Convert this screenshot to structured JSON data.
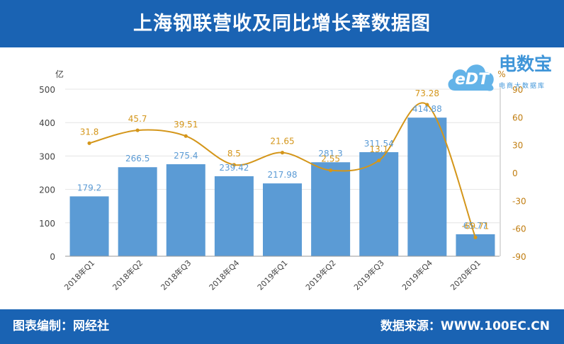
{
  "header": {
    "title": "上海钢联营收及同比增长率数据图"
  },
  "footer": {
    "left": "图表编制：网经社",
    "right": "数据来源：WWW.100EC.CN"
  },
  "logo": {
    "main": "电数宝",
    "sub": "电商大数据库",
    "mark": "eDT"
  },
  "colors": {
    "bar": "#5b9bd5",
    "line": "#d4961a",
    "header": "#1a63b3",
    "bar_label": "#5b9bd5",
    "line_label": "#d4961a"
  },
  "chart_data": {
    "type": "bar+line",
    "categories": [
      "2018年Q1",
      "2018年Q2",
      "2018年Q3",
      "2018年Q4",
      "2019年Q1",
      "2019年Q2",
      "2019年Q3",
      "2019年Q4",
      "2020年Q1"
    ],
    "series": [
      {
        "type": "bar",
        "axis": "left",
        "values": [
          179.2,
          266.5,
          275.4,
          239.42,
          217.98,
          281.3,
          311.54,
          414.88,
          65.77
        ]
      },
      {
        "type": "line",
        "axis": "right",
        "values": [
          31.8,
          45.7,
          39.51,
          8.5,
          21.65,
          2.55,
          13.1,
          73.28,
          -69.71
        ]
      }
    ],
    "label_texts": {
      "bar": [
        "179.2",
        "266.5",
        "275.4",
        "239.42",
        "217.98",
        "281.3",
        "311.54",
        "414.88",
        "65.77"
      ],
      "line": [
        "31.8",
        "45.7",
        "39.51",
        "8.5",
        "21.65",
        "2.55",
        "13.1",
        "73.28",
        "-69.71"
      ]
    },
    "y_left": {
      "label": "亿",
      "min": 0,
      "max": 500,
      "ticks": [
        0,
        100,
        200,
        300,
        400,
        500
      ]
    },
    "y_right": {
      "label": "%",
      "min": -90,
      "max": 90,
      "ticks": [
        -90,
        -60,
        -30,
        0,
        30,
        60,
        90
      ]
    },
    "grid": true,
    "legend": "none"
  }
}
